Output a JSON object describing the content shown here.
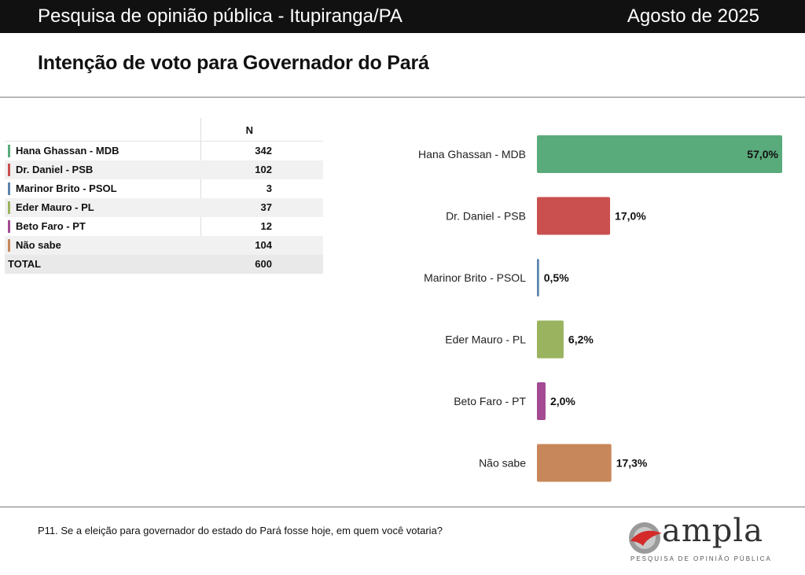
{
  "header": {
    "title": "Pesquisa de opinião pública - Itupiranga/PA",
    "date": "Agosto de 2025",
    "subtitle": "Intenção de voto para Governador do Pará"
  },
  "table": {
    "column_header": "N",
    "rows": [
      {
        "label": "Hana Ghassan - MDB",
        "n": "342",
        "color": "#5aab7b"
      },
      {
        "label": "Dr. Daniel - PSB",
        "n": "102",
        "color": "#c9504f"
      },
      {
        "label": "Marinor Brito - PSOL",
        "n": "3",
        "color": "#5b84ad"
      },
      {
        "label": "Eder Mauro - PL",
        "n": "37",
        "color": "#9ab35f"
      },
      {
        "label": "Beto Faro - PT",
        "n": "12",
        "color": "#a34a92"
      },
      {
        "label": "Não sabe",
        "n": "104",
        "color": "#c8875a"
      }
    ],
    "total_label": "TOTAL",
    "total_n": "600"
  },
  "chart_data": {
    "type": "bar",
    "orientation": "horizontal",
    "categories": [
      "Hana Ghassan - MDB",
      "Dr. Daniel - PSB",
      "Marinor Brito - PSOL",
      "Eder Mauro - PL",
      "Beto Faro - PT",
      "Não sabe"
    ],
    "values": [
      57.0,
      17.0,
      0.5,
      6.2,
      2.0,
      17.3
    ],
    "value_labels": [
      "57,0%",
      "17,0%",
      "0,5%",
      "6,2%",
      "2,0%",
      "17,3%"
    ],
    "colors": [
      "#5aab7b",
      "#c9504f",
      "#5b84ad",
      "#9ab35f",
      "#a34a92",
      "#c8875a"
    ],
    "xlim": [
      0,
      57.0
    ],
    "grid": false,
    "legend": "none"
  },
  "footnote": "P11. Se a eleição para governador do estado do Pará fosse hoje, em quem você votaria?",
  "logo": {
    "word": "ampla",
    "tagline": "PESQUISA DE OPINIÃO PÚBLICA",
    "icon": "ampla-logo-icon"
  }
}
